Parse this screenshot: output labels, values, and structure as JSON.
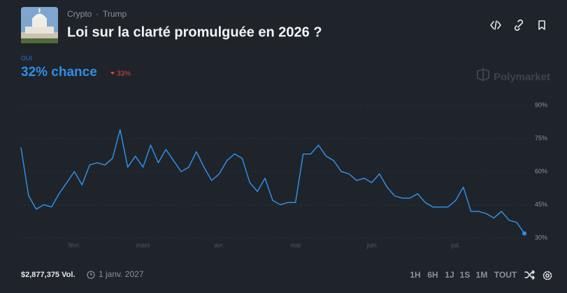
{
  "header": {
    "tags": [
      "Crypto",
      "Trump"
    ],
    "separator": "·",
    "title": "Loi sur la clarté promulguée en 2026 ?"
  },
  "outcome": {
    "label": "OUI",
    "chance": "32% chance",
    "change": "33%"
  },
  "brand": "Polymarket",
  "footer": {
    "volume": "$2,877,375 Vol.",
    "end_date": "1 janv. 2027",
    "ranges": [
      "1H",
      "6H",
      "1J",
      "1S",
      "1M",
      "TOUT"
    ],
    "active_range": "TOUT"
  },
  "chart_data": {
    "type": "line",
    "categories": [
      null,
      null,
      null,
      null,
      null,
      null,
      null,
      "févr.",
      null,
      null,
      null,
      null,
      null,
      null,
      null,
      null,
      "mars",
      null,
      null,
      null,
      null,
      null,
      null,
      null,
      null,
      null,
      "avr.",
      null,
      null,
      null,
      null,
      null,
      null,
      null,
      null,
      null,
      "mai",
      null,
      null,
      null,
      null,
      null,
      null,
      null,
      null,
      null,
      "juin",
      null,
      null,
      null,
      null,
      null,
      null,
      null,
      null,
      null,
      null,
      "juil.",
      null,
      null,
      null,
      null,
      null,
      null,
      null,
      null,
      null
    ],
    "series": [
      {
        "color": "#2f8ee5",
        "values": [
          71,
          49,
          43,
          45,
          44,
          50,
          55,
          60,
          54,
          63,
          64,
          63,
          66,
          79,
          62,
          67,
          62,
          72,
          64,
          70,
          65,
          60,
          62,
          69,
          62,
          56,
          59,
          65,
          68,
          66,
          55,
          51,
          57,
          47,
          45,
          46,
          46,
          68,
          68,
          72,
          67,
          65,
          60,
          59,
          56,
          57,
          55,
          59,
          53,
          49,
          48,
          48,
          50,
          46,
          44,
          44,
          44,
          47,
          53,
          42,
          42,
          41,
          39,
          42,
          38,
          37,
          32
        ]
      }
    ],
    "ylim": [
      30,
      90
    ],
    "yticks": [
      {
        "value": 90,
        "label": "90%"
      },
      {
        "value": 75,
        "label": "75%"
      },
      {
        "value": 60,
        "label": "60%"
      },
      {
        "value": 45,
        "label": "45%"
      },
      {
        "value": 30,
        "label": "30%"
      }
    ],
    "grid": true
  }
}
